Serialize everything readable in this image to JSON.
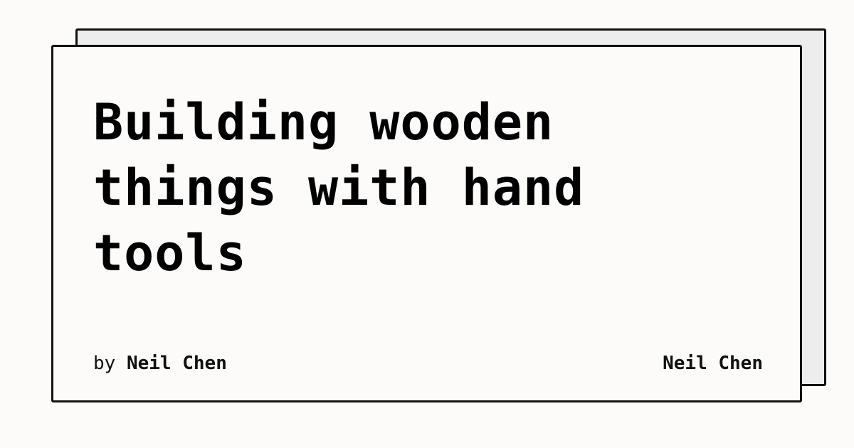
{
  "card": {
    "title": "Building wooden things with hand tools",
    "byline_prefix": "by",
    "author": "Neil Chen",
    "brand": "Neil Chen"
  }
}
